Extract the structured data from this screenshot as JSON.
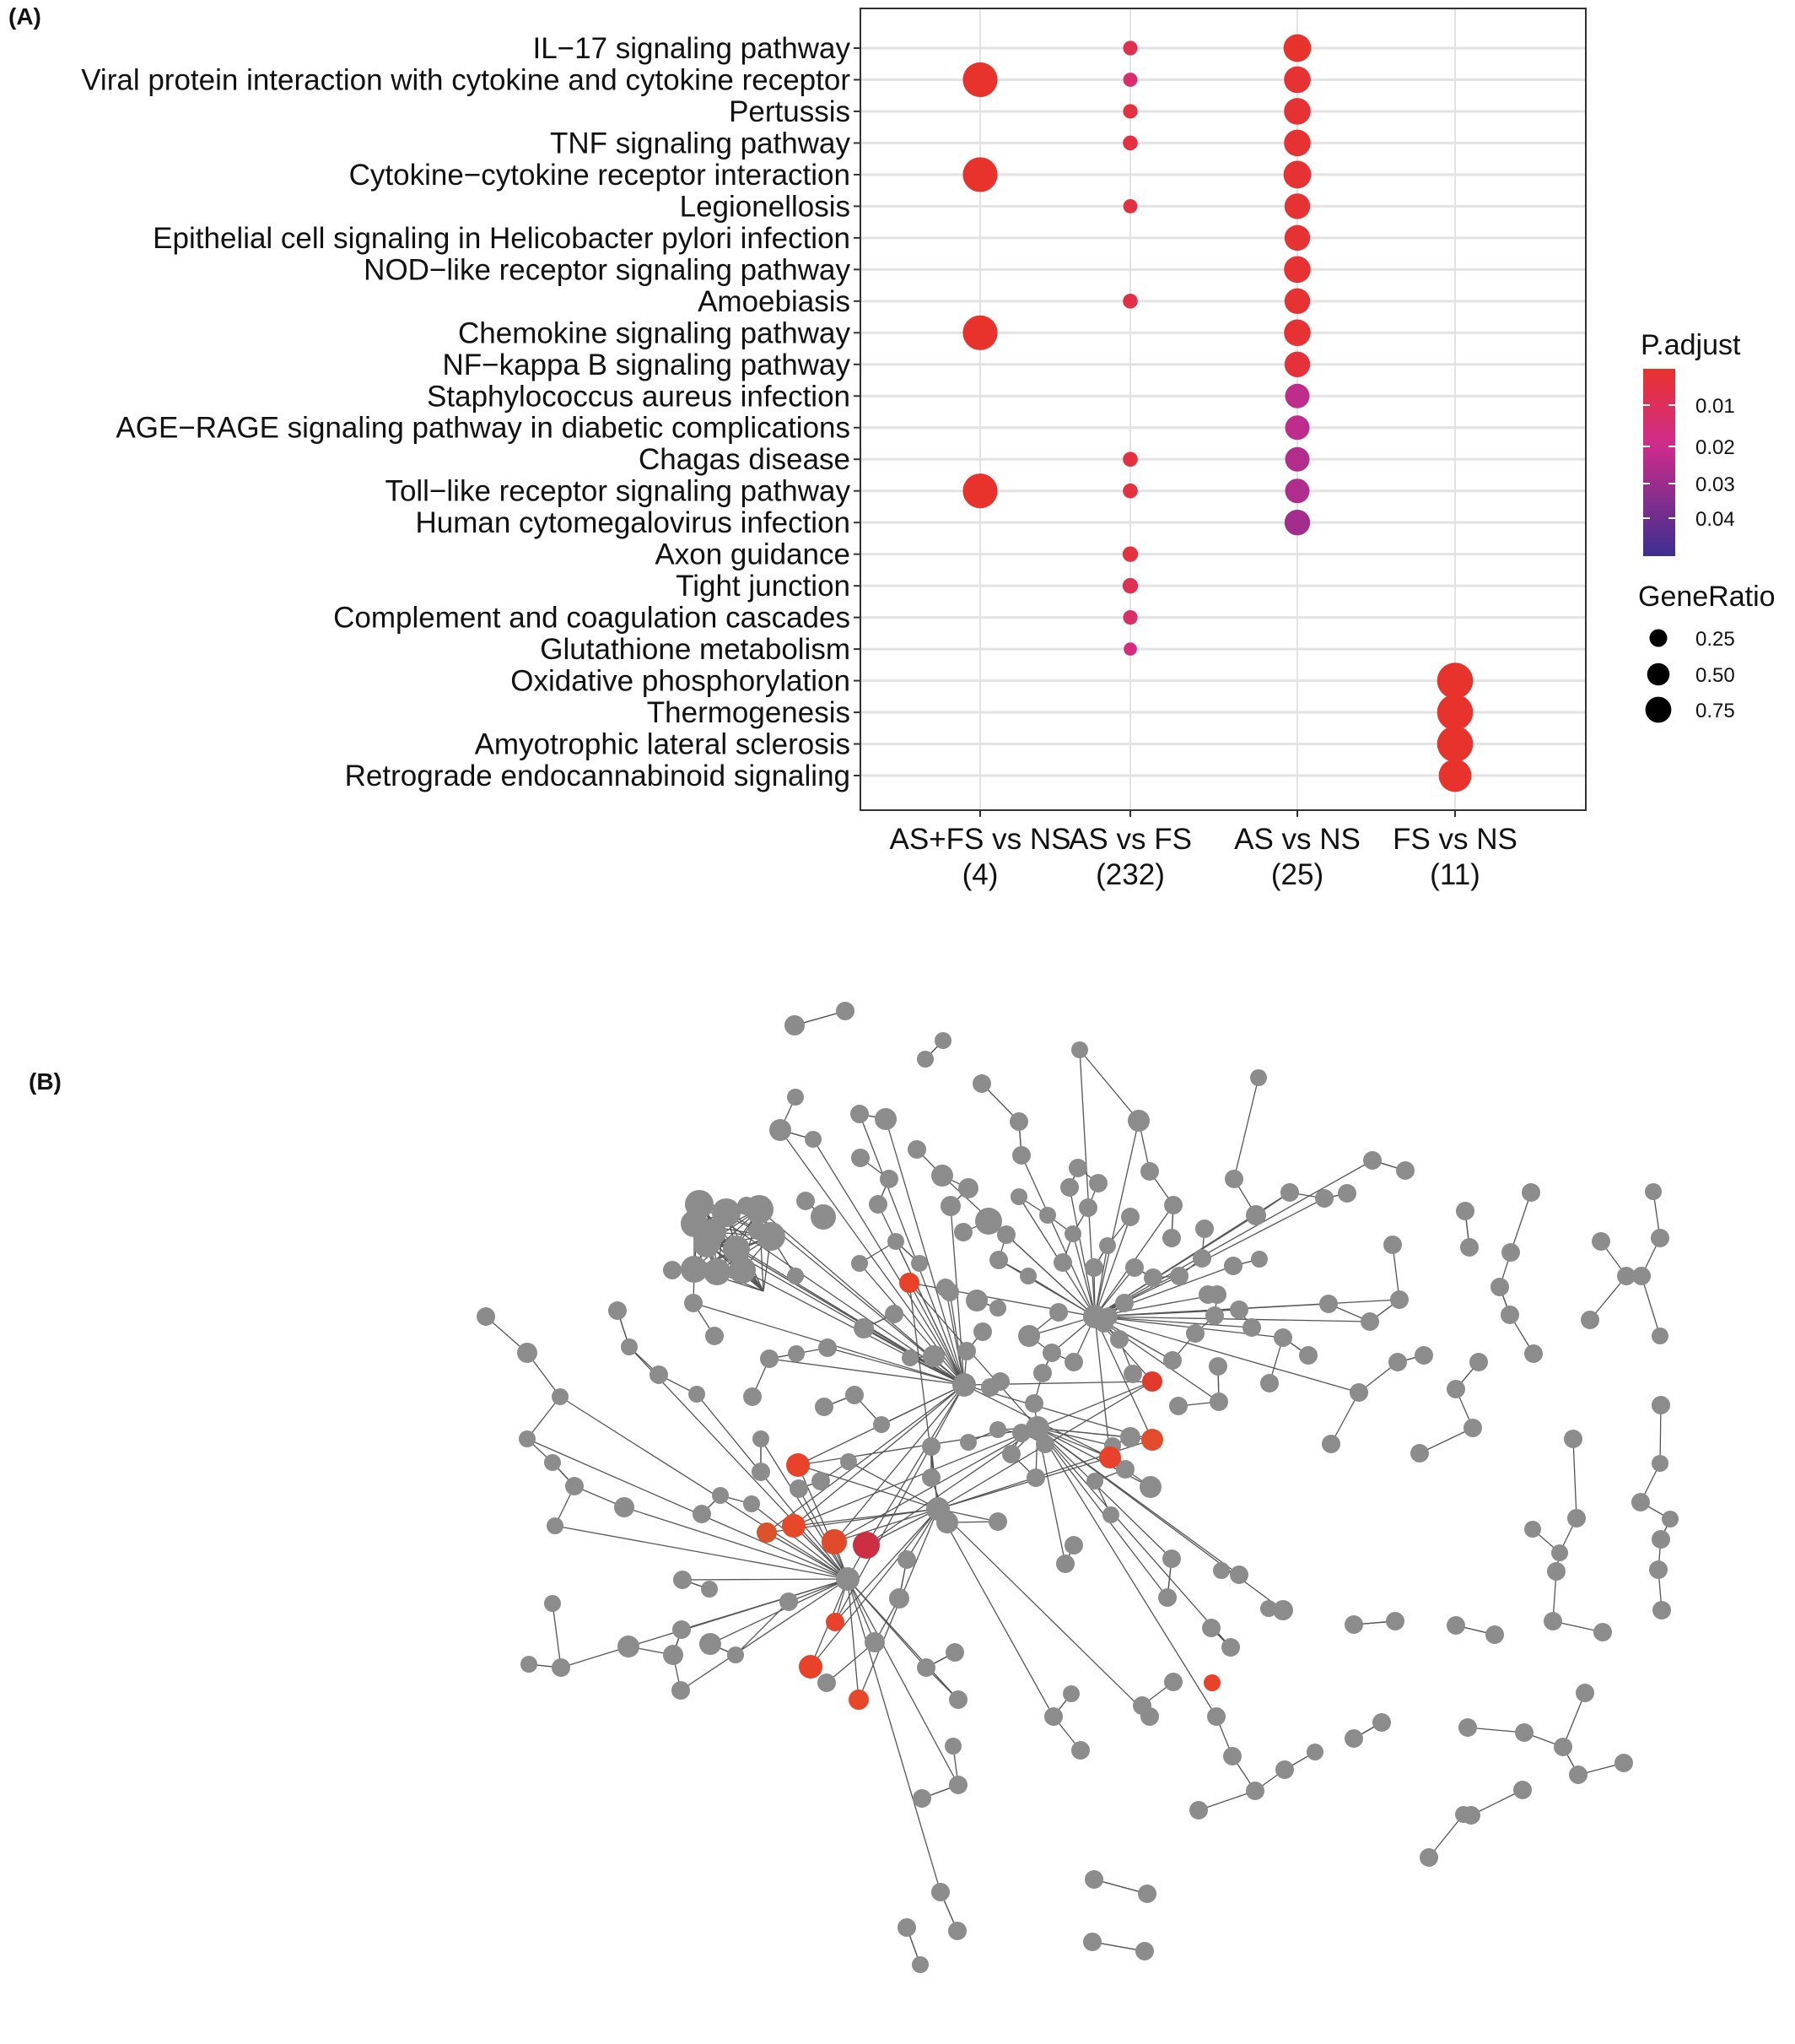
{
  "panels": {
    "a_label": "(A)",
    "b_label": "(B)"
  },
  "chart_data": [
    {
      "type": "scatter",
      "title": "",
      "xlabel": "",
      "ylabel": "",
      "grid": true,
      "legend_position": "right",
      "groups": [
        {
          "name": "AS+FS vs NS",
          "count": "(4)"
        },
        {
          "name": "AS vs FS",
          "count": "(232)"
        },
        {
          "name": "AS vs NS",
          "count": "(25)"
        },
        {
          "name": "FS vs NS",
          "count": "(11)"
        }
      ],
      "pathways": [
        "IL−17 signaling pathway",
        "Viral protein interaction with cytokine and cytokine receptor",
        "Pertussis",
        "TNF signaling pathway",
        "Cytokine−cytokine receptor interaction",
        "Legionellosis",
        "Epithelial cell signaling in Helicobacter pylori infection",
        "NOD−like receptor signaling pathway",
        "Amoebiasis",
        "Chemokine signaling pathway",
        "NF−kappa B signaling pathway",
        "Staphylococcus aureus infection",
        "AGE−RAGE signaling pathway in diabetic complications",
        "Chagas disease",
        "Toll−like receptor signaling pathway",
        "Human cytomegalovirus infection",
        "Axon guidance",
        "Tight junction",
        "Complement and coagulation cascades",
        "Glutathione metabolism",
        "Oxidative phosphorylation",
        "Thermogenesis",
        "Amyotrophic lateral sclerosis",
        "Retrograde endocannabinoid signaling"
      ],
      "points": [
        {
          "pathway": 1,
          "group": 0,
          "gene_ratio": 0.75,
          "p_adjust": 0.003
        },
        {
          "pathway": 4,
          "group": 0,
          "gene_ratio": 0.75,
          "p_adjust": 0.003
        },
        {
          "pathway": 9,
          "group": 0,
          "gene_ratio": 0.75,
          "p_adjust": 0.003
        },
        {
          "pathway": 14,
          "group": 0,
          "gene_ratio": 0.75,
          "p_adjust": 0.003
        },
        {
          "pathway": 0,
          "group": 1,
          "gene_ratio": 0.04,
          "p_adjust": 0.008
        },
        {
          "pathway": 1,
          "group": 1,
          "gene_ratio": 0.035,
          "p_adjust": 0.013
        },
        {
          "pathway": 2,
          "group": 1,
          "gene_ratio": 0.04,
          "p_adjust": 0.006
        },
        {
          "pathway": 3,
          "group": 1,
          "gene_ratio": 0.045,
          "p_adjust": 0.006
        },
        {
          "pathway": 5,
          "group": 1,
          "gene_ratio": 0.035,
          "p_adjust": 0.006
        },
        {
          "pathway": 8,
          "group": 1,
          "gene_ratio": 0.045,
          "p_adjust": 0.007
        },
        {
          "pathway": 13,
          "group": 1,
          "gene_ratio": 0.045,
          "p_adjust": 0.006
        },
        {
          "pathway": 14,
          "group": 1,
          "gene_ratio": 0.045,
          "p_adjust": 0.006
        },
        {
          "pathway": 16,
          "group": 1,
          "gene_ratio": 0.055,
          "p_adjust": 0.006
        },
        {
          "pathway": 17,
          "group": 1,
          "gene_ratio": 0.055,
          "p_adjust": 0.009
        },
        {
          "pathway": 18,
          "group": 1,
          "gene_ratio": 0.04,
          "p_adjust": 0.012
        },
        {
          "pathway": 19,
          "group": 1,
          "gene_ratio": 0.025,
          "p_adjust": 0.016
        },
        {
          "pathway": 0,
          "group": 2,
          "gene_ratio": 0.4,
          "p_adjust": 0.003
        },
        {
          "pathway": 1,
          "group": 2,
          "gene_ratio": 0.36,
          "p_adjust": 0.004
        },
        {
          "pathway": 2,
          "group": 2,
          "gene_ratio": 0.36,
          "p_adjust": 0.004
        },
        {
          "pathway": 3,
          "group": 2,
          "gene_ratio": 0.36,
          "p_adjust": 0.004
        },
        {
          "pathway": 4,
          "group": 2,
          "gene_ratio": 0.4,
          "p_adjust": 0.004
        },
        {
          "pathway": 5,
          "group": 2,
          "gene_ratio": 0.32,
          "p_adjust": 0.004
        },
        {
          "pathway": 6,
          "group": 2,
          "gene_ratio": 0.32,
          "p_adjust": 0.004
        },
        {
          "pathway": 7,
          "group": 2,
          "gene_ratio": 0.36,
          "p_adjust": 0.004
        },
        {
          "pathway": 8,
          "group": 2,
          "gene_ratio": 0.32,
          "p_adjust": 0.004
        },
        {
          "pathway": 9,
          "group": 2,
          "gene_ratio": 0.36,
          "p_adjust": 0.004
        },
        {
          "pathway": 10,
          "group": 2,
          "gene_ratio": 0.32,
          "p_adjust": 0.005
        },
        {
          "pathway": 11,
          "group": 2,
          "gene_ratio": 0.28,
          "p_adjust": 0.021
        },
        {
          "pathway": 12,
          "group": 2,
          "gene_ratio": 0.28,
          "p_adjust": 0.021
        },
        {
          "pathway": 13,
          "group": 2,
          "gene_ratio": 0.28,
          "p_adjust": 0.023
        },
        {
          "pathway": 14,
          "group": 2,
          "gene_ratio": 0.28,
          "p_adjust": 0.024
        },
        {
          "pathway": 15,
          "group": 2,
          "gene_ratio": 0.32,
          "p_adjust": 0.026
        },
        {
          "pathway": 20,
          "group": 3,
          "gene_ratio": 0.82,
          "p_adjust": 0.003
        },
        {
          "pathway": 21,
          "group": 3,
          "gene_ratio": 0.82,
          "p_adjust": 0.003
        },
        {
          "pathway": 22,
          "group": 3,
          "gene_ratio": 0.82,
          "p_adjust": 0.003
        },
        {
          "pathway": 23,
          "group": 3,
          "gene_ratio": 0.64,
          "p_adjust": 0.003
        }
      ],
      "legend": {
        "color_title": "P.adjust",
        "color_ticks": [
          "0.01",
          "0.02",
          "0.03",
          "0.04"
        ],
        "size_title": "GeneRatio",
        "size_ticks": [
          "0.25",
          "0.50",
          "0.75"
        ],
        "colors": {
          "low": "#e8322c",
          "mid": "#d02c8c",
          "high": "#3b2f8f"
        }
      }
    },
    {
      "type": "network",
      "node_color": "#8c8c8c",
      "highlight_color": "#e8422a",
      "edge_color": "#555555"
    }
  ]
}
